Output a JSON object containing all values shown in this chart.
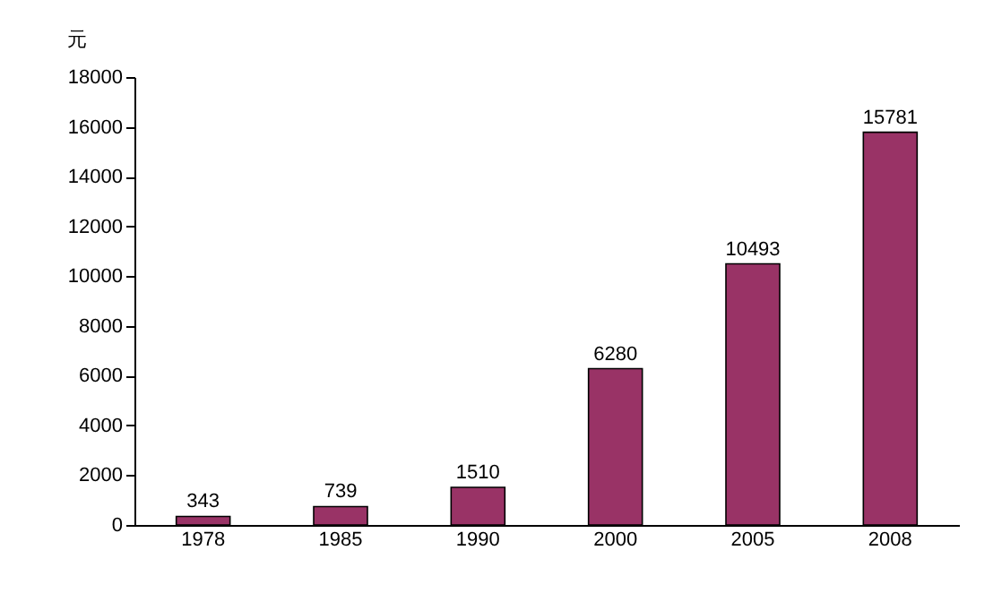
{
  "chart_data": {
    "type": "bar",
    "ylabel": "元",
    "categories": [
      "1978",
      "1985",
      "1990",
      "2000",
      "2005",
      "2008"
    ],
    "values": [
      343,
      739,
      1510,
      6280,
      10493,
      15781
    ],
    "color": "#993366",
    "ylim": [
      0,
      18000
    ],
    "yticks": [
      0,
      2000,
      4000,
      6000,
      8000,
      10000,
      12000,
      14000,
      16000,
      18000
    ],
    "data_labels": true,
    "grid": false
  }
}
